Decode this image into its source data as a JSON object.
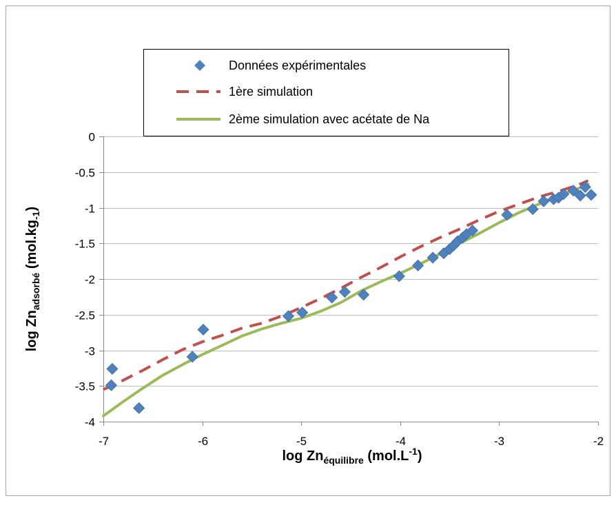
{
  "chart_data": {
    "type": "scatter",
    "xlim": [
      -7,
      -2
    ],
    "ylim": [
      -4,
      0
    ],
    "x_ticks": [
      "-7",
      "-6",
      "-5",
      "-4",
      "-3",
      "-2"
    ],
    "y_ticks": [
      "0",
      "-0.5",
      "-1",
      "-1.5",
      "-2",
      "-2.5",
      "-3",
      "-3.5",
      "-4"
    ],
    "x_tick_values": [
      -7,
      -6,
      -5,
      -4,
      -3,
      -2
    ],
    "y_tick_values": [
      0,
      -0.5,
      -1,
      -1.5,
      -2,
      -2.5,
      -3,
      -3.5,
      -4
    ],
    "grid": "horizontal",
    "legend_position": "top",
    "xlabel": {
      "prefix": "log Zn",
      "subscript": "équilibre",
      "unit_open": " (mol.L",
      "superscript": "-1",
      "unit_close": ")"
    },
    "ylabel": {
      "prefix": "log Zn",
      "subscript": "adsorbé",
      "unit_open": " (mol.kg",
      "subscript2": "-1",
      "unit_close": ")"
    },
    "series": [
      {
        "name": "Données expérimentales",
        "kind": "markers",
        "color": "#4F81BD",
        "marker": "diamond",
        "x": [
          -6.91,
          -6.92,
          -6.64,
          -6.1,
          -5.99,
          -5.13,
          -4.99,
          -4.69,
          -4.56,
          -4.37,
          -4.01,
          -3.82,
          -3.67,
          -3.56,
          -3.5,
          -3.46,
          -3.42,
          -3.37,
          -3.33,
          -3.27,
          -2.92,
          -2.66,
          -2.55,
          -2.45,
          -2.4,
          -2.35,
          -2.25,
          -2.18,
          -2.13,
          -2.07
        ],
        "y": [
          -3.26,
          -3.49,
          -3.81,
          -3.09,
          -2.71,
          -2.52,
          -2.47,
          -2.26,
          -2.18,
          -2.22,
          -1.96,
          -1.81,
          -1.7,
          -1.64,
          -1.58,
          -1.53,
          -1.47,
          -1.42,
          -1.37,
          -1.32,
          -1.1,
          -1.02,
          -0.91,
          -0.88,
          -0.86,
          -0.81,
          -0.76,
          -0.83,
          -0.71,
          -0.82
        ]
      },
      {
        "name": "1ère simulation",
        "kind": "line",
        "color": "#C0504D",
        "dash": "dashed",
        "x": [
          -7.0,
          -6.8,
          -6.6,
          -6.4,
          -6.2,
          -6.0,
          -5.8,
          -5.6,
          -5.4,
          -5.2,
          -5.0,
          -4.8,
          -4.6,
          -4.4,
          -4.2,
          -4.0,
          -3.8,
          -3.6,
          -3.4,
          -3.2,
          -3.0,
          -2.8,
          -2.6,
          -2.4,
          -2.2,
          -2.1
        ],
        "y": [
          -3.55,
          -3.42,
          -3.28,
          -3.13,
          -2.99,
          -2.88,
          -2.79,
          -2.69,
          -2.62,
          -2.52,
          -2.4,
          -2.27,
          -2.13,
          -1.98,
          -1.84,
          -1.69,
          -1.55,
          -1.42,
          -1.3,
          -1.17,
          -1.05,
          -0.95,
          -0.85,
          -0.77,
          -0.68,
          -0.62
        ]
      },
      {
        "name": "2ème simulation avec acétate de Na",
        "kind": "line",
        "color": "#9BBB59",
        "dash": "solid",
        "x": [
          -7.0,
          -6.8,
          -6.6,
          -6.4,
          -6.2,
          -6.0,
          -5.8,
          -5.6,
          -5.4,
          -5.2,
          -5.0,
          -4.8,
          -4.6,
          -4.4,
          -4.2,
          -4.0,
          -3.8,
          -3.6,
          -3.4,
          -3.2,
          -3.0,
          -2.8,
          -2.6,
          -2.4,
          -2.2,
          -2.1
        ],
        "y": [
          -3.92,
          -3.72,
          -3.53,
          -3.35,
          -3.2,
          -3.06,
          -2.93,
          -2.8,
          -2.7,
          -2.62,
          -2.55,
          -2.45,
          -2.33,
          -2.17,
          -2.04,
          -1.92,
          -1.79,
          -1.65,
          -1.5,
          -1.36,
          -1.21,
          -1.07,
          -0.95,
          -0.83,
          -0.73,
          -0.67
        ]
      }
    ]
  }
}
